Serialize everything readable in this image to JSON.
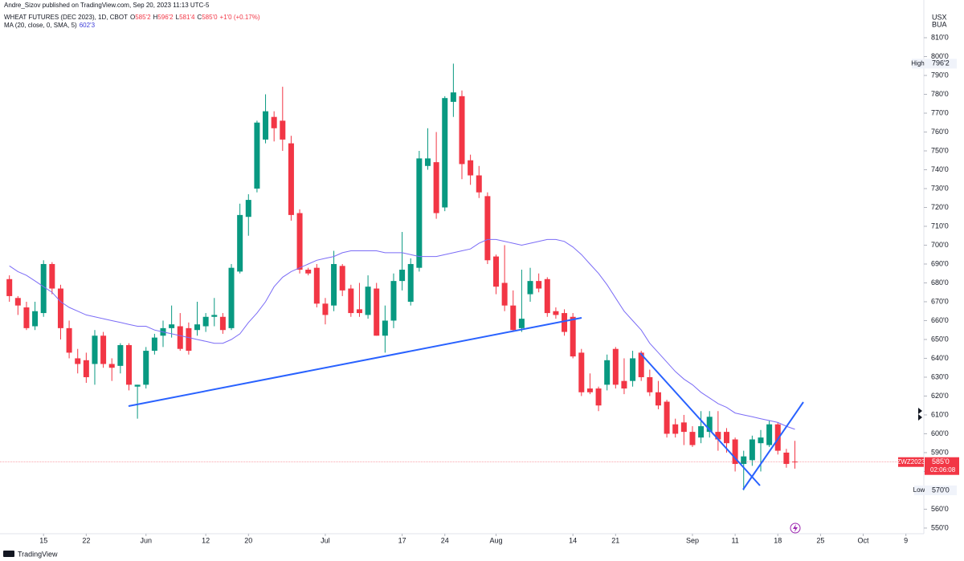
{
  "publisher": "Andre_Sizov published on TradingView.com, Sep 20, 2023 11:13 UTC-5",
  "brand": "TradingView",
  "legend": {
    "title": "WHEAT FUTURES (DEC 2023), 1D, CBOT",
    "fields": [
      {
        "key": "O",
        "value": "585'2"
      },
      {
        "key": "H",
        "value": "596'2"
      },
      {
        "key": "L",
        "value": "581'4"
      },
      {
        "key": "C",
        "value": "585'0"
      }
    ],
    "change": "+1'0 (+0.17%)"
  },
  "ma_legend": {
    "name": "MA (20, close, 0, SMA, 5)",
    "value": "602'3"
  },
  "currency": [
    "USX",
    "BUA"
  ],
  "chart_data": {
    "type": "candlestick",
    "up_color": "#089981",
    "down_color": "#f23645",
    "open": [
      682,
      672,
      667,
      657,
      664,
      690,
      677,
      656,
      640,
      639,
      637,
      652,
      637,
      636,
      647,
      625,
      626,
      644,
      652,
      656,
      657,
      656,
      655,
      657,
      662,
      662,
      656,
      686,
      715,
      730,
      756,
      768,
      766,
      754,
      717,
      687,
      688,
      669,
      668,
      689,
      677,
      666,
      663,
      677,
      652,
      660,
      681,
      670,
      688,
      742,
      744,
      720,
      776,
      779,
      745,
      737,
      726,
      694,
      680,
      668,
      656,
      674,
      681,
      682,
      665,
      664,
      662,
      643,
      624,
      624,
      626,
      645,
      628,
      628,
      643,
      630,
      622,
      617,
      605,
      606,
      601,
      598,
      601,
      601,
      601,
      597,
      584,
      586,
      595,
      594,
      605,
      590,
      585.25
    ],
    "high": [
      684,
      673,
      670,
      670,
      692,
      691,
      679,
      660,
      645,
      643,
      655,
      654,
      640,
      648,
      648,
      626,
      646,
      653,
      660,
      668,
      664,
      659,
      670,
      664,
      672,
      664,
      690,
      722,
      727,
      766,
      780,
      771,
      784,
      758,
      719,
      688,
      690,
      672,
      697,
      690,
      679,
      680,
      684,
      680,
      668,
      685,
      707,
      693,
      750,
      762,
      760,
      779,
      796.25,
      782,
      748,
      742,
      728,
      695,
      700,
      676,
      687,
      688,
      685,
      683,
      667,
      666,
      664,
      645,
      632,
      625,
      642,
      646,
      640,
      644,
      644,
      634,
      628,
      618,
      608,
      610,
      604,
      612,
      612,
      612,
      603,
      598,
      591,
      599,
      602,
      607,
      606,
      592,
      596.25
    ],
    "low": [
      670,
      663,
      655,
      655,
      662,
      674,
      650,
      640,
      632,
      627,
      626,
      635,
      628,
      632,
      623,
      608,
      624,
      642,
      646,
      651,
      644,
      642,
      652,
      654,
      657,
      653,
      655,
      685,
      705,
      728,
      754,
      755,
      750,
      713,
      685,
      684,
      667,
      658,
      665,
      673,
      662,
      662,
      661,
      652,
      643,
      656,
      676,
      668,
      686,
      740,
      714,
      718,
      768,
      735,
      732,
      725,
      690,
      674,
      665,
      654,
      654,
      670,
      675,
      662,
      661,
      652,
      640,
      620,
      621,
      612,
      623,
      624,
      621,
      625,
      628,
      620,
      613,
      598,
      598,
      594,
      593,
      595,
      598,
      591,
      590,
      580,
      570,
      583,
      580,
      593,
      589,
      582,
      581.5
    ],
    "close": [
      673,
      668,
      656,
      665,
      690,
      677,
      656,
      643,
      637,
      630,
      652,
      637,
      635,
      647,
      626,
      626,
      644,
      651,
      656,
      658,
      645,
      644,
      658,
      662,
      663,
      655,
      688,
      716,
      724,
      765,
      771,
      762,
      756,
      716,
      687,
      685,
      669,
      663,
      690,
      676,
      664,
      664,
      678,
      652,
      660,
      681,
      687,
      690,
      746,
      746,
      717,
      778,
      781,
      743,
      737,
      728,
      692,
      678,
      668,
      655,
      661,
      681,
      677,
      664,
      663,
      654,
      641,
      622,
      622,
      615,
      639,
      626,
      624,
      640,
      630,
      622,
      615,
      600,
      600,
      601,
      594,
      604,
      609,
      597,
      595,
      584,
      588,
      597,
      598,
      605,
      591,
      584,
      585
    ],
    "ma": {
      "name": "MA (20, close, 0, SMA, 5)",
      "color": "#7b6cf6",
      "values": [
        689,
        686,
        684,
        681,
        678,
        675,
        670,
        667,
        665,
        663,
        662,
        661,
        660,
        659,
        658,
        657,
        657,
        655,
        654,
        653,
        652,
        651,
        650,
        649,
        648,
        648,
        650,
        653,
        659,
        664,
        670,
        678,
        683,
        686,
        688,
        690,
        692,
        693,
        694,
        696,
        697,
        697,
        697,
        697,
        696,
        696,
        696,
        695,
        694,
        694,
        694,
        695,
        696,
        697,
        698,
        701,
        703,
        703,
        702,
        701,
        700,
        701,
        702,
        703,
        703,
        702,
        699,
        695,
        690,
        685,
        679,
        672,
        665,
        660,
        655,
        648,
        643,
        638,
        633,
        629,
        626,
        622,
        619,
        616,
        614,
        611,
        610,
        609,
        608,
        607,
        606,
        604,
        602.375
      ]
    },
    "xlim": [
      -1.1,
      107.1
    ],
    "xticks": [
      {
        "value": 4,
        "label": "15"
      },
      {
        "value": 9,
        "label": "22"
      },
      {
        "value": 16,
        "label": "Jun"
      },
      {
        "value": 23,
        "label": "12"
      },
      {
        "value": 28,
        "label": "20"
      },
      {
        "value": 37,
        "label": "Jul"
      },
      {
        "value": 46,
        "label": "17"
      },
      {
        "value": 51,
        "label": "24"
      },
      {
        "value": 57,
        "label": "Aug"
      },
      {
        "value": 66,
        "label": "14"
      },
      {
        "value": 71,
        "label": "21"
      },
      {
        "value": 80,
        "label": "Sep"
      },
      {
        "value": 85,
        "label": "11"
      },
      {
        "value": 90,
        "label": "18"
      },
      {
        "value": 95,
        "label": "25"
      },
      {
        "value": 100,
        "label": "Oct"
      },
      {
        "value": 105,
        "label": "9"
      }
    ],
    "ylim": [
      547,
      830
    ],
    "yticks": [
      {
        "value": 550,
        "label": "550'0"
      },
      {
        "value": 560,
        "label": "560'0"
      },
      {
        "value": 570,
        "label": "570'0"
      },
      {
        "value": 580,
        "label": "580'0"
      },
      {
        "value": 590,
        "label": "590'0"
      },
      {
        "value": 600,
        "label": "600'0"
      },
      {
        "value": 610,
        "label": "610'0"
      },
      {
        "value": 620,
        "label": "620'0"
      },
      {
        "value": 630,
        "label": "630'0"
      },
      {
        "value": 640,
        "label": "640'0"
      },
      {
        "value": 650,
        "label": "650'0"
      },
      {
        "value": 660,
        "label": "660'0"
      },
      {
        "value": 670,
        "label": "670'0"
      },
      {
        "value": 680,
        "label": "680'0"
      },
      {
        "value": 690,
        "label": "690'0"
      },
      {
        "value": 700,
        "label": "700'0"
      },
      {
        "value": 710,
        "label": "710'0"
      },
      {
        "value": 720,
        "label": "720'0"
      },
      {
        "value": 730,
        "label": "730'0"
      },
      {
        "value": 740,
        "label": "740'0"
      },
      {
        "value": 750,
        "label": "750'0"
      },
      {
        "value": 760,
        "label": "760'0"
      },
      {
        "value": 770,
        "label": "770'0"
      },
      {
        "value": 780,
        "label": "780'0"
      },
      {
        "value": 790,
        "label": "790'0"
      },
      {
        "value": 800,
        "label": "800'0"
      },
      {
        "value": 810,
        "label": "810'0"
      }
    ],
    "grid": false,
    "high_marker": {
      "name": "High",
      "value": 796.25,
      "label": "796'2"
    },
    "low_marker": {
      "name": "Low",
      "value": 570,
      "label": "570'0"
    },
    "last_price": {
      "symbol": "ZWZ2023",
      "value": 585,
      "label": "585'0",
      "countdown": "02:06:08"
    }
  }
}
